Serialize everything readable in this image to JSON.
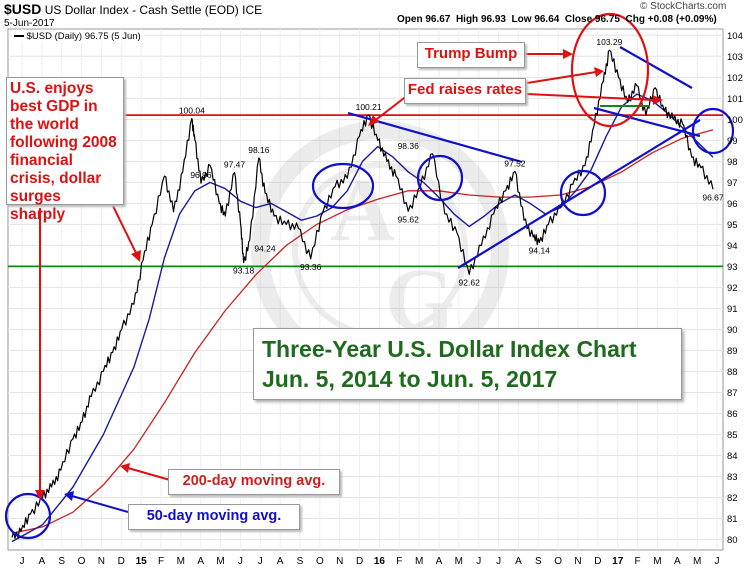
{
  "header": {
    "symbol": "$USD",
    "name": "US Dollar Index - Cash Settle (EOD)",
    "exchange": "ICE",
    "date": "5-Jun-2017",
    "open_label": "Open",
    "open": "96.67",
    "high_label": "High",
    "high": "96.93",
    "low_label": "Low",
    "low": "96.64",
    "close_label": "Close",
    "close": "96.75",
    "chg_label": "Chg",
    "chg": "+0.08 (+0.09%)",
    "legend": "$USD (Daily) 96.75 (5 Jun)",
    "watermark": "© StockCharts.com"
  },
  "callouts": {
    "gdp": "U.S. enjoys best GDP in the world following 2008 financial crisis, dollar surges sharply",
    "trump": "Trump Bump",
    "fed": "Fed raises rates",
    "title_line1": "Three-Year U.S. Dollar Index Chart",
    "title_line2": "Jun. 5, 2014 to Jun. 5, 2017",
    "ma200": "200-day moving avg.",
    "ma50": "50-day moving avg."
  },
  "colors": {
    "price": "#000000",
    "ma50": "#1a1aa0",
    "ma200": "#cc2020",
    "red_annot": "#dd1111",
    "blue_annot": "#1010cc",
    "green_line": "#118811",
    "title_green": "#1e6b1e"
  },
  "chart_data": {
    "type": "line",
    "ylim": [
      79.5,
      104.3
    ],
    "y_ticks": [
      80,
      81,
      82,
      83,
      84,
      85,
      86,
      87,
      88,
      89,
      90,
      91,
      92,
      93,
      94,
      95,
      96,
      97,
      98,
      99,
      100,
      101,
      102,
      103,
      104
    ],
    "x_tick_labels": [
      "J",
      "A",
      "S",
      "O",
      "N",
      "D",
      "15",
      "F",
      "M",
      "A",
      "M",
      "J",
      "J",
      "A",
      "S",
      "O",
      "N",
      "D",
      "16",
      "F",
      "M",
      "A",
      "M",
      "J",
      "J",
      "A",
      "S",
      "O",
      "N",
      "D",
      "17",
      "F",
      "M",
      "A",
      "M",
      "J"
    ],
    "reference_lines": [
      {
        "name": "resistance",
        "value": 100.2,
        "color": "#dd1111"
      },
      {
        "name": "support",
        "value": 93.0,
        "color": "#118811"
      }
    ],
    "price_labels": [
      {
        "t": 5.9,
        "value": 100.04,
        "label": "100.04"
      },
      {
        "t": 6.2,
        "value": 96.96,
        "label": "96.96"
      },
      {
        "t": 7.3,
        "value": 97.47,
        "label": "97.47"
      },
      {
        "t": 8.1,
        "value": 98.16,
        "label": "98.16"
      },
      {
        "t": 7.6,
        "value": 93.18,
        "label": "93.18"
      },
      {
        "t": 8.3,
        "value": 94.24,
        "label": "94.24"
      },
      {
        "t": 9.8,
        "value": 93.36,
        "label": "93.36"
      },
      {
        "t": 11.7,
        "value": 100.21,
        "label": "100.21"
      },
      {
        "t": 13.0,
        "value": 98.36,
        "label": "98.36"
      },
      {
        "t": 13.0,
        "value": 95.62,
        "label": "95.62"
      },
      {
        "t": 15.0,
        "value": 92.62,
        "label": "92.62"
      },
      {
        "t": 16.5,
        "value": 97.52,
        "label": "97.52"
      },
      {
        "t": 17.3,
        "value": 94.14,
        "label": "94.14"
      },
      {
        "t": 19.6,
        "value": 103.29,
        "label": "103.29"
      },
      {
        "t": 23.0,
        "value": 96.67,
        "label": "96.67"
      }
    ],
    "series": [
      {
        "name": "$USD (Daily)",
        "t": [
          0,
          0.3,
          0.6,
          1.0,
          1.3,
          1.6,
          2.0,
          2.3,
          2.6,
          3.0,
          3.3,
          3.6,
          4.0,
          4.3,
          4.6,
          5.0,
          5.3,
          5.6,
          5.9,
          6.0,
          6.2,
          6.5,
          6.8,
          7.0,
          7.3,
          7.5,
          7.6,
          7.8,
          8.1,
          8.3,
          8.6,
          9.0,
          9.4,
          9.8,
          10.2,
          10.6,
          11.0,
          11.4,
          11.7,
          12.0,
          12.3,
          12.6,
          13.0,
          13.4,
          13.8,
          14.2,
          14.6,
          15.0,
          15.4,
          15.8,
          16.2,
          16.5,
          16.8,
          17.1,
          17.3,
          17.6,
          18.0,
          18.4,
          18.8,
          19.1,
          19.4,
          19.6,
          19.9,
          20.2,
          20.5,
          20.8,
          21.1,
          21.4,
          21.7,
          22.0,
          22.3,
          22.6,
          23.0
        ],
        "values": [
          80.1,
          80.4,
          81.2,
          82.0,
          82.5,
          83.3,
          84.8,
          85.6,
          86.8,
          88.0,
          88.9,
          90.0,
          91.2,
          93.3,
          95.0,
          97.3,
          95.6,
          97.5,
          100.04,
          99.0,
          96.96,
          97.8,
          96.0,
          95.4,
          97.47,
          95.0,
          93.18,
          94.24,
          98.16,
          96.5,
          95.4,
          95.0,
          94.8,
          93.36,
          95.6,
          96.8,
          97.2,
          99.2,
          100.21,
          99.0,
          98.0,
          97.3,
          95.62,
          96.8,
          98.36,
          95.5,
          94.6,
          92.62,
          94.0,
          95.5,
          96.6,
          97.52,
          95.2,
          94.4,
          94.14,
          95.0,
          95.8,
          96.9,
          97.8,
          99.7,
          101.8,
          103.29,
          102.0,
          100.8,
          101.6,
          100.2,
          101.5,
          100.4,
          100.0,
          99.8,
          98.2,
          97.7,
          96.67
        ]
      },
      {
        "name": "50-day moving avg.",
        "t": [
          0,
          1.0,
          2.0,
          3.0,
          4.0,
          4.5,
          5.0,
          5.5,
          6.0,
          6.5,
          7.0,
          7.5,
          8.0,
          8.5,
          9.0,
          9.5,
          10.0,
          10.5,
          11.0,
          11.5,
          12.0,
          12.5,
          13.0,
          13.5,
          14.0,
          14.5,
          15.0,
          15.5,
          16.0,
          16.5,
          17.0,
          17.5,
          18.0,
          18.5,
          19.0,
          19.5,
          20.0,
          20.5,
          21.0,
          21.5,
          22.0,
          22.5,
          23.0
        ],
        "values": [
          79.9,
          80.7,
          82.5,
          85.0,
          88.2,
          90.5,
          93.4,
          95.5,
          96.6,
          97.0,
          96.7,
          96.1,
          95.8,
          96.0,
          95.6,
          95.2,
          95.4,
          95.8,
          96.6,
          98.0,
          98.7,
          98.2,
          97.5,
          97.0,
          96.3,
          95.5,
          94.9,
          95.4,
          96.0,
          96.4,
          96.0,
          95.5,
          95.8,
          96.6,
          97.6,
          99.2,
          100.6,
          101.2,
          100.9,
          100.3,
          99.6,
          98.9,
          98.2
        ]
      },
      {
        "name": "200-day moving avg.",
        "t": [
          0,
          1.0,
          2.0,
          3.0,
          4.0,
          5.0,
          6.0,
          7.0,
          8.0,
          9.0,
          10.0,
          11.0,
          12.0,
          13.0,
          14.0,
          15.0,
          16.0,
          17.0,
          18.0,
          19.0,
          20.0,
          21.0,
          22.0,
          23.0
        ],
        "values": [
          80.3,
          80.6,
          81.3,
          82.6,
          84.3,
          86.5,
          88.9,
          90.9,
          92.6,
          94.0,
          95.0,
          95.7,
          96.2,
          96.6,
          96.6,
          96.4,
          96.3,
          96.3,
          96.4,
          96.8,
          97.5,
          98.4,
          99.1,
          99.5
        ]
      }
    ]
  }
}
